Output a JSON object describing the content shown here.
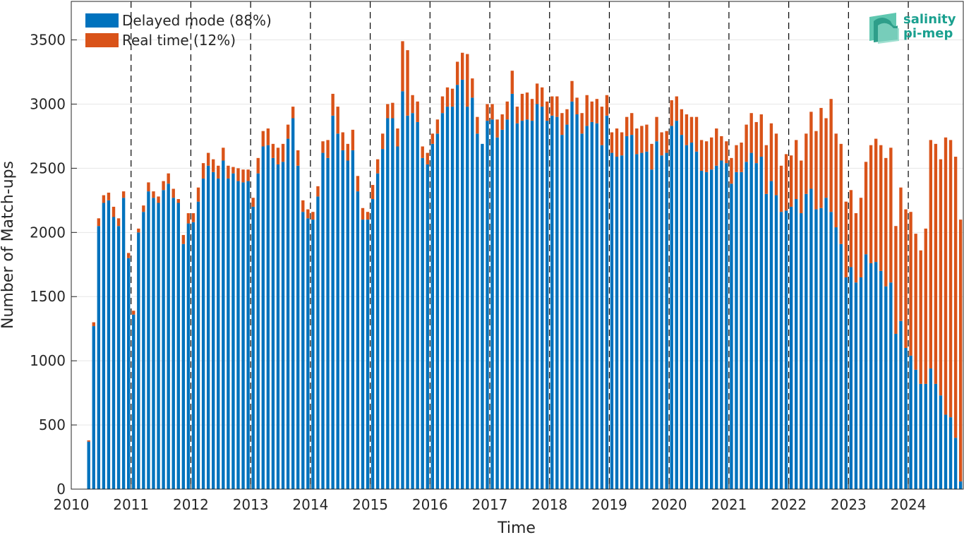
{
  "chart_data": {
    "type": "bar",
    "stacked": true,
    "xlabel": "Time",
    "ylabel": "Number of Match-ups",
    "xlim": [
      2010.0,
      2024.92
    ],
    "ylim": [
      0,
      3800
    ],
    "yticks": [
      0,
      500,
      1000,
      1500,
      2000,
      2500,
      3000,
      3500
    ],
    "xticks": [
      "2010",
      "2011",
      "2012",
      "2013",
      "2014",
      "2015",
      "2016",
      "2017",
      "2018",
      "2019",
      "2020",
      "2021",
      "2022",
      "2023",
      "2024"
    ],
    "year_separators": "dashed vertical lines at each year",
    "grid": "horizontal only",
    "legend_position": "top-left",
    "first_month": "2010-04",
    "series": [
      {
        "name": "Delayed mode (88%)",
        "color": "#0072bd",
        "values": [
          370,
          1270,
          2050,
          2230,
          2250,
          2120,
          2050,
          2270,
          1800,
          1360,
          2000,
          2160,
          2320,
          2270,
          2230,
          2330,
          2380,
          2270,
          2230,
          1910,
          2070,
          2080,
          2240,
          2420,
          2520,
          2470,
          2420,
          2560,
          2420,
          2460,
          2400,
          2390,
          2400,
          2200,
          2460,
          2670,
          2680,
          2580,
          2530,
          2550,
          2730,
          2890,
          2520,
          2160,
          2110,
          2100,
          2280,
          2620,
          2580,
          2910,
          2770,
          2640,
          2560,
          2640,
          2320,
          2100,
          2100,
          2260,
          2460,
          2650,
          2890,
          2890,
          2670,
          3100,
          2910,
          2930,
          2860,
          2580,
          2530,
          2690,
          2770,
          2930,
          2980,
          2980,
          3150,
          3190,
          2980,
          3050,
          2770,
          2690,
          2870,
          2880,
          2740,
          2800,
          2880,
          3080,
          2850,
          2870,
          2880,
          2870,
          3000,
          2980,
          2870,
          2910,
          2900,
          2760,
          2840,
          3020,
          2920,
          2770,
          2830,
          2860,
          2850,
          2680,
          2910,
          2620,
          2590,
          2600,
          2750,
          2760,
          2610,
          2620,
          2630,
          2490,
          2710,
          2600,
          2620,
          2830,
          2870,
          2760,
          2680,
          2700,
          2630,
          2480,
          2470,
          2490,
          2520,
          2560,
          2540,
          2380,
          2470,
          2470,
          2550,
          2620,
          2540,
          2590,
          2300,
          2400,
          2290,
          2160,
          2170,
          2200,
          2260,
          2150,
          2300,
          2340,
          2180,
          2190,
          2270,
          2160,
          2040,
          1910,
          1650,
          1730,
          1610,
          1650,
          1830,
          1760,
          1770,
          1700,
          1580,
          1610,
          1210,
          1310,
          1100,
          1040,
          930,
          820,
          820,
          940,
          820,
          730,
          580,
          560,
          400,
          60
        ]
      },
      {
        "name": "Real time (12%)",
        "color": "#d95319",
        "values": [
          10,
          30,
          60,
          60,
          60,
          80,
          60,
          50,
          40,
          30,
          30,
          50,
          70,
          50,
          50,
          70,
          80,
          70,
          30,
          70,
          80,
          70,
          110,
          120,
          100,
          100,
          100,
          100,
          100,
          50,
          100,
          100,
          90,
          70,
          120,
          120,
          130,
          110,
          130,
          140,
          110,
          90,
          120,
          90,
          70,
          60,
          80,
          90,
          140,
          170,
          210,
          140,
          130,
          160,
          120,
          90,
          60,
          110,
          110,
          120,
          110,
          120,
          140,
          390,
          510,
          140,
          160,
          90,
          90,
          80,
          110,
          130,
          150,
          140,
          180,
          210,
          410,
          150,
          130,
          0,
          130,
          120,
          140,
          120,
          140,
          180,
          130,
          210,
          210,
          170,
          160,
          150,
          150,
          150,
          160,
          170,
          120,
          160,
          130,
          160,
          240,
          160,
          190,
          300,
          160,
          160,
          220,
          180,
          150,
          170,
          200,
          210,
          210,
          200,
          190,
          180,
          170,
          200,
          190,
          200,
          240,
          200,
          270,
          240,
          240,
          250,
          290,
          190,
          170,
          200,
          210,
          230,
          290,
          310,
          320,
          330,
          380,
          450,
          480,
          360,
          440,
          400,
          460,
          410,
          470,
          600,
          610,
          780,
          620,
          880,
          730,
          780,
          590,
          600,
          540,
          620,
          720,
          920,
          960,
          980,
          1000,
          1050,
          840,
          1040,
          1080,
          1120,
          1060,
          1040,
          1210,
          1780,
          1870,
          1840,
          2160,
          2160,
          2190,
          2040
        ]
      }
    ]
  },
  "logo": {
    "line1": "salinity",
    "line2": "pi-mep"
  }
}
